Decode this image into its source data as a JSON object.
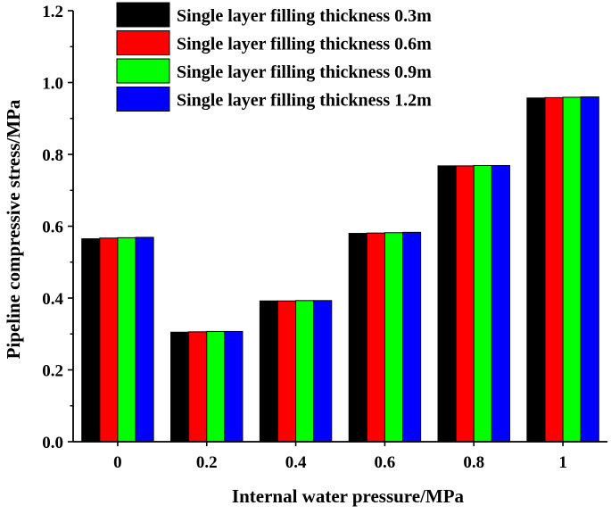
{
  "chart_data": {
    "type": "bar",
    "title": "",
    "xlabel": "Internal water pressure/MPa",
    "ylabel": "Pipeline compressive stress/MPa",
    "categories": [
      "0",
      "0.2",
      "0.4",
      "0.6",
      "0.8",
      "1"
    ],
    "ylim": [
      0,
      1.2
    ],
    "yticks": [
      "0.0",
      "0.2",
      "0.4",
      "0.6",
      "0.8",
      "1.0",
      "1.2"
    ],
    "grid": false,
    "legend_position": "top",
    "series": [
      {
        "name": "Single layer filling thickness 0.3m",
        "color": "#000000",
        "values": [
          0.565,
          0.305,
          0.392,
          0.58,
          0.768,
          0.957
        ]
      },
      {
        "name": "Single layer filling thickness 0.6m",
        "color": "#ff0000",
        "values": [
          0.567,
          0.306,
          0.392,
          0.581,
          0.768,
          0.958
        ]
      },
      {
        "name": "Single layer filling thickness 0.9m",
        "color": "#00ff00",
        "values": [
          0.568,
          0.307,
          0.393,
          0.582,
          0.769,
          0.959
        ]
      },
      {
        "name": "Single layer filling thickness 1.2m",
        "color": "#0000ff",
        "values": [
          0.569,
          0.307,
          0.393,
          0.583,
          0.769,
          0.96
        ]
      }
    ]
  }
}
